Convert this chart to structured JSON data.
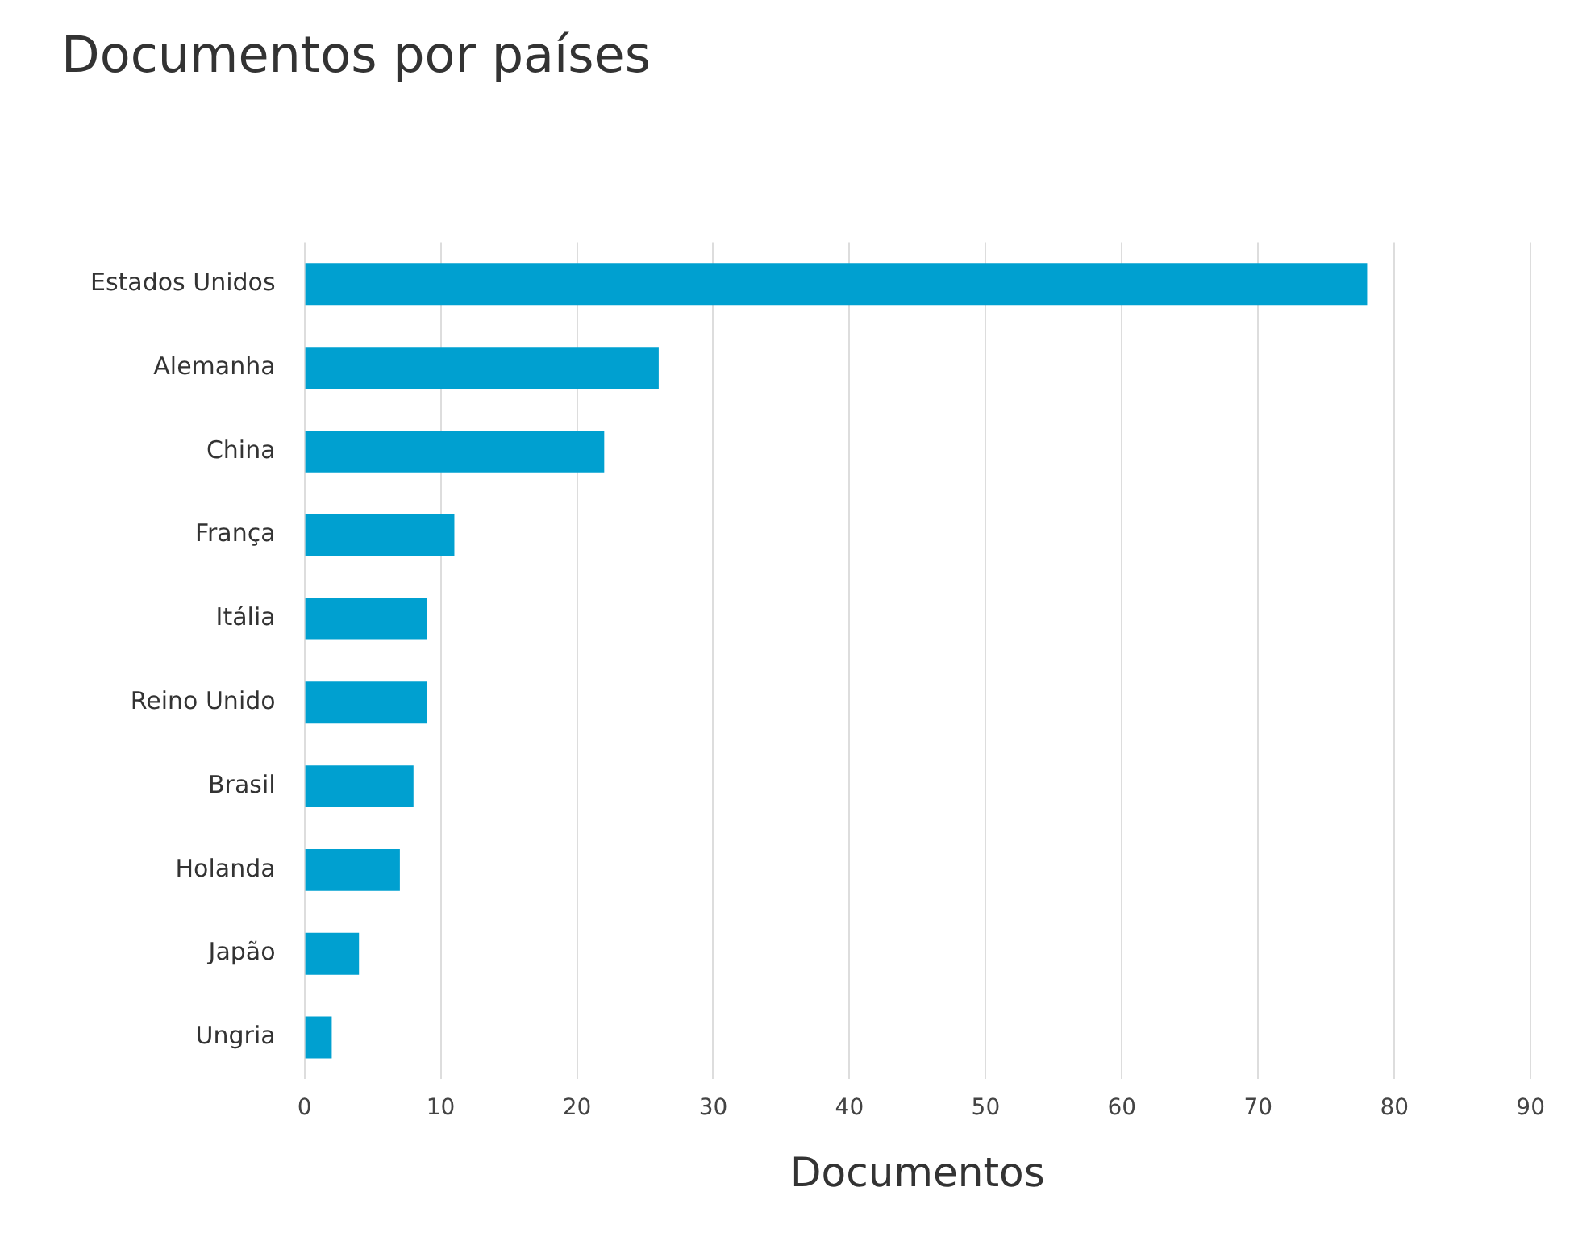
{
  "chart_data": {
    "type": "bar",
    "orientation": "horizontal",
    "title": "Documentos por países",
    "xlabel": "Documentos",
    "categories": [
      "Estados Unidos",
      "Alemanha",
      "China",
      "França",
      "Itália",
      "Reino Unido",
      "Brasil",
      "Holanda",
      "Japão",
      "Ungria"
    ],
    "values": [
      78,
      26,
      22,
      11,
      9,
      9,
      8,
      7,
      4,
      2
    ],
    "color": "#00a0d0",
    "xlim": [
      0,
      90
    ],
    "xticks": [
      0,
      10,
      20,
      30,
      40,
      50,
      60,
      70,
      80,
      90
    ],
    "grid": "x"
  }
}
